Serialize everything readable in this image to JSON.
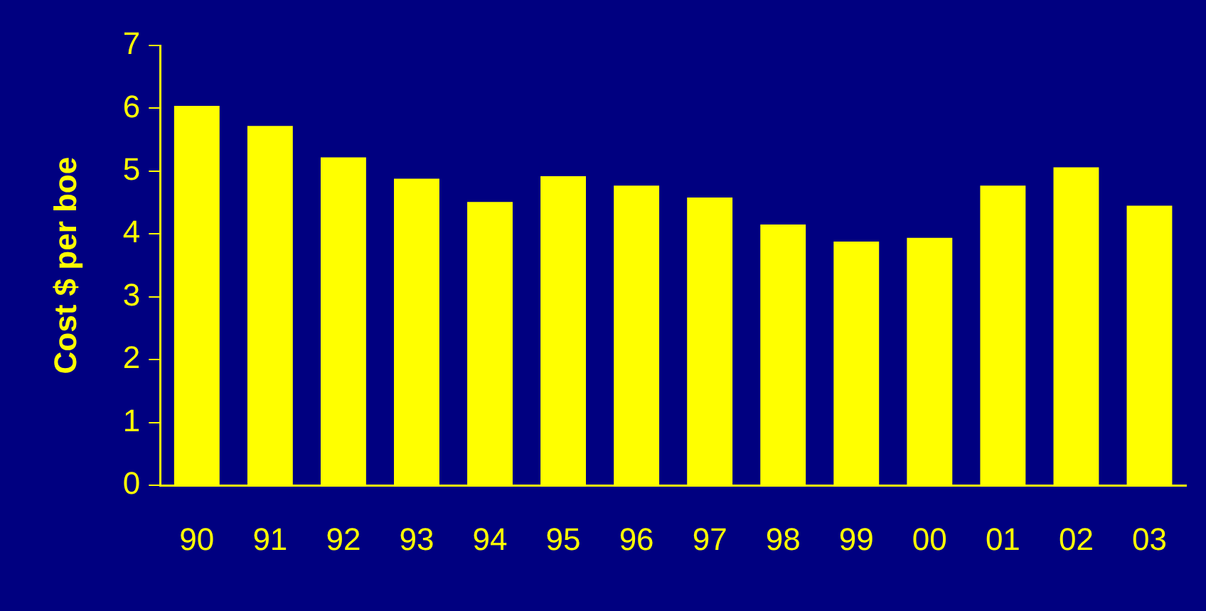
{
  "chart_data": {
    "type": "bar",
    "ylabel": "Cost $ per boe",
    "categories": [
      "90",
      "91",
      "92",
      "93",
      "94",
      "95",
      "96",
      "97",
      "98",
      "99",
      "00",
      "01",
      "02",
      "03"
    ],
    "values": [
      6.04,
      5.72,
      5.22,
      4.88,
      4.51,
      4.92,
      4.77,
      4.58,
      4.15,
      3.88,
      3.94,
      4.77,
      5.06,
      4.45
    ],
    "color": "#ffff00",
    "ylim": [
      0,
      7
    ],
    "yticks": [
      0,
      1,
      2,
      3,
      4,
      5,
      6,
      7
    ],
    "grid": false,
    "legend": false
  }
}
